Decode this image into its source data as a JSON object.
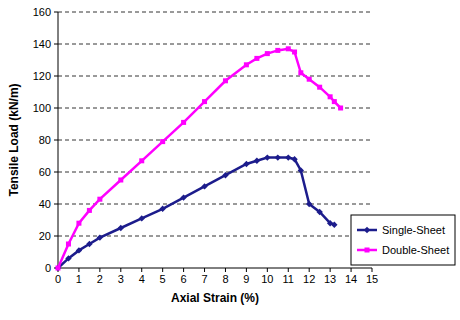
{
  "chart_data": {
    "type": "line",
    "x_label": "Axial Strain (%)",
    "y_label": "Tensile Load (kN/m)",
    "x": [
      0,
      0.5,
      1,
      1.5,
      2,
      3,
      4,
      5,
      6,
      7,
      8,
      9,
      9.5,
      10,
      10.5,
      11,
      11.3,
      11.6,
      12,
      12.5,
      13,
      13.2,
      13.5
    ],
    "series": [
      {
        "name": "Single-Sheet",
        "color": "#1c1c8c",
        "marker": "diamond",
        "values": [
          0,
          6,
          11,
          15,
          19,
          25,
          31,
          37,
          44,
          51,
          58,
          65,
          67,
          69,
          69,
          69,
          68,
          61,
          40,
          35,
          28,
          27,
          null
        ]
      },
      {
        "name": "Double-Sheet",
        "color": "#ff00ff",
        "marker": "square",
        "values": [
          0,
          15,
          28,
          36,
          43,
          55,
          67,
          79,
          91,
          104,
          117,
          127,
          131,
          134,
          136,
          137,
          135,
          122,
          118,
          113,
          107,
          104,
          100
        ]
      }
    ],
    "xlim": [
      0,
      15
    ],
    "xticks": [
      0,
      1,
      2,
      3,
      4,
      5,
      6,
      7,
      8,
      9,
      10,
      11,
      12,
      13,
      14,
      15
    ],
    "ylim": [
      0,
      160
    ],
    "yticks": [
      0,
      20,
      40,
      60,
      80,
      100,
      120,
      140,
      160
    ],
    "grid": true,
    "legend": "lower right"
  }
}
